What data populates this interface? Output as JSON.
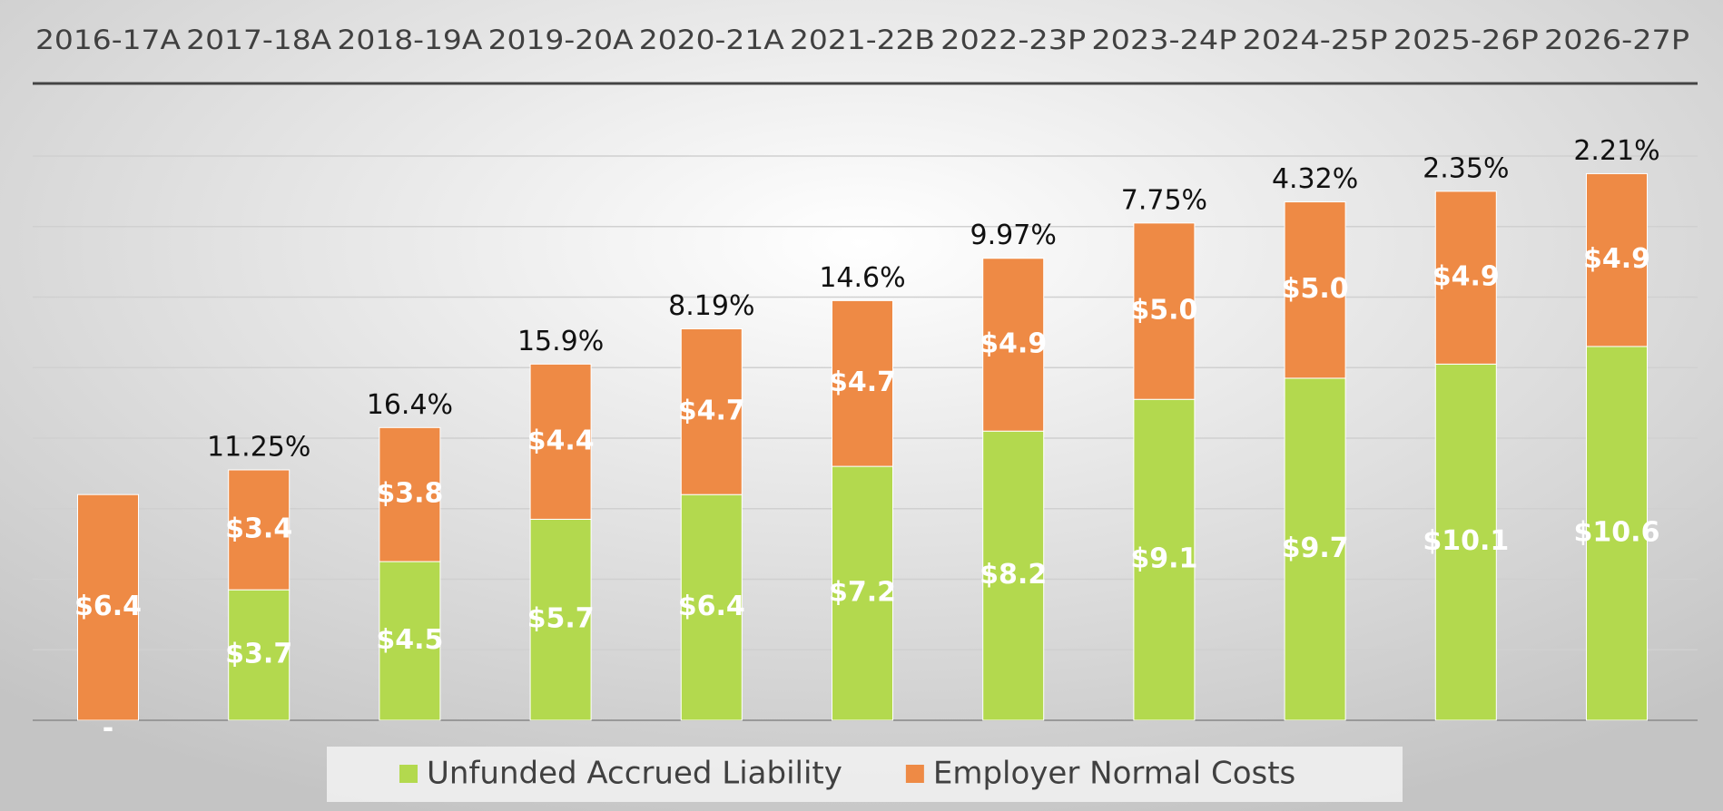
{
  "chart_data": {
    "type": "stacked_bar",
    "categories": [
      "2016-17A",
      "2017-18A",
      "2018-19A",
      "2019-20A",
      "2020-21A",
      "2021-22B",
      "2022-23P",
      "2023-24P",
      "2024-25P",
      "2025-26P",
      "2026-27P"
    ],
    "series": [
      {
        "name": "Unfunded Accrued Liability",
        "color": "#b3d94e",
        "values": [
          0,
          3.7,
          4.5,
          5.7,
          6.4,
          7.2,
          8.2,
          9.1,
          9.7,
          10.1,
          10.6
        ],
        "value_labels": [
          "-",
          "$3.7",
          "$4.5",
          "$5.7",
          "$6.4",
          "$7.2",
          "$8.2",
          "$9.1",
          "$9.7",
          "$10.1",
          "$10.6"
        ]
      },
      {
        "name": "Employer Normal Costs",
        "color": "#ee8a45",
        "values": [
          6.4,
          3.4,
          3.8,
          4.4,
          4.7,
          4.7,
          4.9,
          5.0,
          5.0,
          4.9,
          4.9
        ],
        "value_labels": [
          "$6.4",
          "$3.4",
          "$3.8",
          "$4.4",
          "$4.7",
          "$4.7",
          "$4.9",
          "$5.0",
          "$5.0",
          "$4.9",
          "$4.9"
        ]
      }
    ],
    "annotations": [
      null,
      "11.25%",
      "16.4%",
      "15.9%",
      "8.19%",
      "14.6%",
      "9.97%",
      "7.75%",
      "4.32%",
      "2.35%",
      "2.21%"
    ],
    "ylim": [
      0,
      16
    ],
    "yticks": [
      0,
      2,
      4,
      6,
      8,
      10,
      12,
      14,
      16
    ],
    "grid": true,
    "legend": "bottom"
  }
}
